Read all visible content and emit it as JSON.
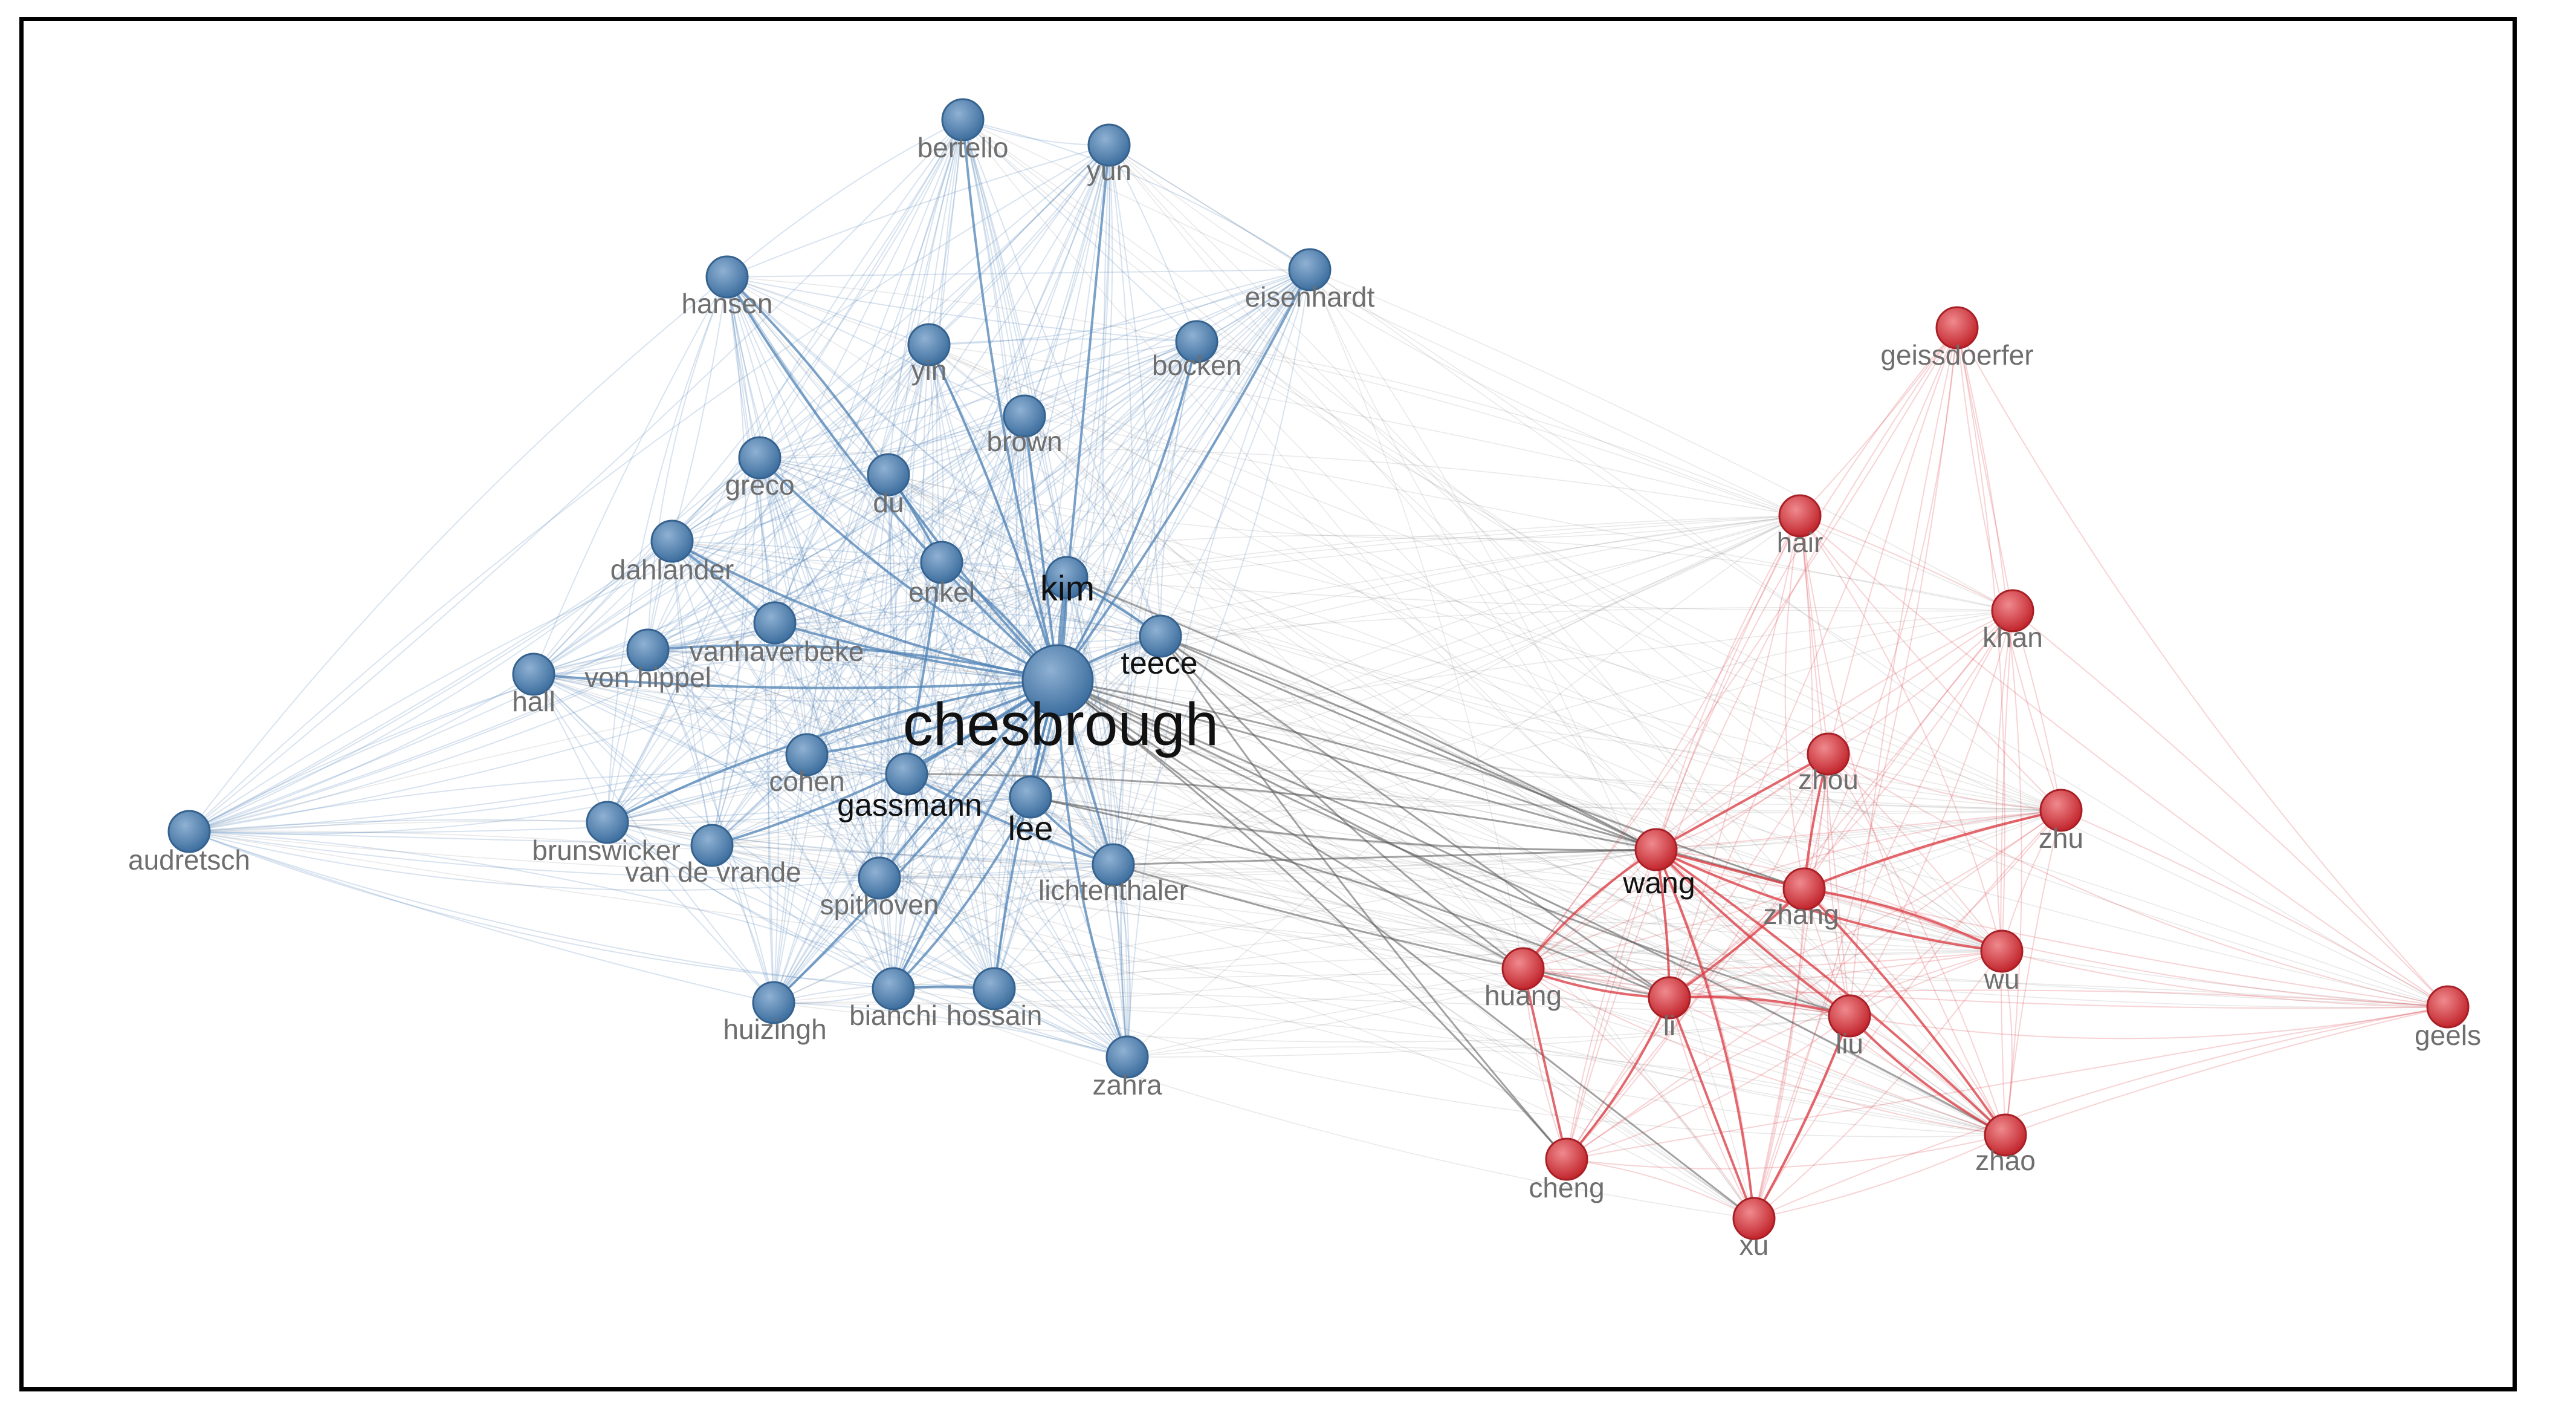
{
  "colors": {
    "cluster_blue": "#4f81b4",
    "cluster_red": "#d9363e",
    "link_gray": "#555555",
    "label_gray": "#6e6e6e",
    "label_strong": "#111111",
    "border": "#000000"
  },
  "nodes": [
    {
      "id": "chesbrough",
      "label": "chesbrough",
      "cluster": "blue",
      "weight": 10
    },
    {
      "id": "kim",
      "label": "kim",
      "cluster": "blue",
      "weight": 3
    },
    {
      "id": "teece",
      "label": "teece",
      "cluster": "blue",
      "weight": 3
    },
    {
      "id": "gassmann",
      "label": "gassmann",
      "cluster": "blue",
      "weight": 3
    },
    {
      "id": "lee",
      "label": "lee",
      "cluster": "blue",
      "weight": 3
    },
    {
      "id": "enkel",
      "label": "enkel",
      "cluster": "blue",
      "weight": 2
    },
    {
      "id": "cohen",
      "label": "cohen",
      "cluster": "blue",
      "weight": 2
    },
    {
      "id": "vanhaverbeke",
      "label": "vanhaverbeke",
      "cluster": "blue",
      "weight": 2
    },
    {
      "id": "lichtenthaler",
      "label": "lichtenthaler",
      "cluster": "blue",
      "weight": 2
    },
    {
      "id": "spithoven",
      "label": "spithoven",
      "cluster": "blue",
      "weight": 2
    },
    {
      "id": "von-hippel",
      "label": "von hippel",
      "cluster": "blue",
      "weight": 2
    },
    {
      "id": "dahlander",
      "label": "dahlander",
      "cluster": "blue",
      "weight": 2
    },
    {
      "id": "du",
      "label": "du",
      "cluster": "blue",
      "weight": 2
    },
    {
      "id": "greco",
      "label": "greco",
      "cluster": "blue",
      "weight": 2
    },
    {
      "id": "brown",
      "label": "brown",
      "cluster": "blue",
      "weight": 2
    },
    {
      "id": "yin",
      "label": "yin",
      "cluster": "blue",
      "weight": 2
    },
    {
      "id": "bocken",
      "label": "bocken",
      "cluster": "blue",
      "weight": 2
    },
    {
      "id": "hansen",
      "label": "hansen",
      "cluster": "blue",
      "weight": 2
    },
    {
      "id": "bertello",
      "label": "bertello",
      "cluster": "blue",
      "weight": 2
    },
    {
      "id": "yun",
      "label": "yun",
      "cluster": "blue",
      "weight": 2
    },
    {
      "id": "eisenhardt",
      "label": "eisenhardt",
      "cluster": "blue",
      "weight": 2
    },
    {
      "id": "hall",
      "label": "hall",
      "cluster": "blue",
      "weight": 2
    },
    {
      "id": "audretsch",
      "label": "audretsch",
      "cluster": "blue",
      "weight": 2
    },
    {
      "id": "brunswicker",
      "label": "brunswicker",
      "cluster": "blue",
      "weight": 2
    },
    {
      "id": "van-de-vrande",
      "label": "van de vrande",
      "cluster": "blue",
      "weight": 2
    },
    {
      "id": "huizingh",
      "label": "huizingh",
      "cluster": "blue",
      "weight": 2
    },
    {
      "id": "bianchi",
      "label": "bianchi",
      "cluster": "blue",
      "weight": 2
    },
    {
      "id": "hossain",
      "label": "hossain",
      "cluster": "blue",
      "weight": 2
    },
    {
      "id": "zahra",
      "label": "zahra",
      "cluster": "blue",
      "weight": 2
    },
    {
      "id": "geissdoerfer",
      "label": "geissdoerfer",
      "cluster": "red",
      "weight": 2
    },
    {
      "id": "hair",
      "label": "hair",
      "cluster": "red",
      "weight": 2
    },
    {
      "id": "khan",
      "label": "khan",
      "cluster": "red",
      "weight": 2
    },
    {
      "id": "zhou",
      "label": "zhou",
      "cluster": "red",
      "weight": 2
    },
    {
      "id": "zhu",
      "label": "zhu",
      "cluster": "red",
      "weight": 2
    },
    {
      "id": "wang",
      "label": "wang",
      "cluster": "red",
      "weight": 3
    },
    {
      "id": "zhang",
      "label": "zhang",
      "cluster": "red",
      "weight": 2
    },
    {
      "id": "wu",
      "label": "wu",
      "cluster": "red",
      "weight": 2
    },
    {
      "id": "huang",
      "label": "huang",
      "cluster": "red",
      "weight": 2
    },
    {
      "id": "li",
      "label": "li",
      "cluster": "red",
      "weight": 2
    },
    {
      "id": "liu",
      "label": "liu",
      "cluster": "red",
      "weight": 2
    },
    {
      "id": "geels",
      "label": "geels",
      "cluster": "red",
      "weight": 2
    },
    {
      "id": "cheng",
      "label": "cheng",
      "cluster": "red",
      "weight": 2
    },
    {
      "id": "zhao",
      "label": "zhao",
      "cluster": "red",
      "weight": 2
    },
    {
      "id": "xu",
      "label": "xu",
      "cluster": "red",
      "weight": 2
    }
  ],
  "strong_links": [
    [
      "chesbrough",
      "teece"
    ],
    [
      "chesbrough",
      "kim"
    ],
    [
      "chesbrough",
      "gassmann"
    ],
    [
      "chesbrough",
      "lee"
    ],
    [
      "chesbrough",
      "enkel"
    ],
    [
      "chesbrough",
      "cohen"
    ],
    [
      "chesbrough",
      "vanhaverbeke"
    ],
    [
      "chesbrough",
      "lichtenthaler"
    ],
    [
      "chesbrough",
      "spithoven"
    ],
    [
      "chesbrough",
      "von-hippel"
    ],
    [
      "chesbrough",
      "dahlander"
    ],
    [
      "chesbrough",
      "du"
    ],
    [
      "chesbrough",
      "brown"
    ],
    [
      "chesbrough",
      "yin"
    ],
    [
      "chesbrough",
      "bocken"
    ],
    [
      "chesbrough",
      "hansen"
    ],
    [
      "chesbrough",
      "bertello"
    ],
    [
      "chesbrough",
      "yun"
    ],
    [
      "chesbrough",
      "eisenhardt"
    ],
    [
      "chesbrough",
      "brunswicker"
    ],
    [
      "chesbrough",
      "van-de-vrande"
    ],
    [
      "chesbrough",
      "huizingh"
    ],
    [
      "chesbrough",
      "bianchi"
    ],
    [
      "chesbrough",
      "hossain"
    ],
    [
      "chesbrough",
      "zahra"
    ],
    [
      "chesbrough",
      "greco"
    ],
    [
      "chesbrough",
      "hall"
    ],
    [
      "gassmann",
      "enkel"
    ],
    [
      "gassmann",
      "lichtenthaler"
    ],
    [
      "lee",
      "kim"
    ],
    [
      "lee",
      "bianchi"
    ],
    [
      "bianchi",
      "hossain"
    ],
    [
      "vanhaverbeke",
      "dahlander"
    ],
    [
      "teece",
      "kim"
    ],
    [
      "lee",
      "lichtenthaler"
    ],
    [
      "hansen",
      "enkel"
    ],
    [
      "wang",
      "li"
    ],
    [
      "wang",
      "zhang"
    ],
    [
      "wang",
      "liu"
    ],
    [
      "wang",
      "huang"
    ],
    [
      "wang",
      "xu"
    ],
    [
      "wang",
      "zhao"
    ],
    [
      "li",
      "xu"
    ],
    [
      "li",
      "zhang"
    ],
    [
      "liu",
      "zhao"
    ],
    [
      "li",
      "huang"
    ],
    [
      "zhang",
      "zhou"
    ],
    [
      "wang",
      "zhou"
    ],
    [
      "zhu",
      "zhang"
    ],
    [
      "wu",
      "zhang"
    ],
    [
      "li",
      "cheng"
    ],
    [
      "liu",
      "xu"
    ],
    [
      "huang",
      "cheng"
    ],
    [
      "zhao",
      "zhang"
    ],
    [
      "wang",
      "wu"
    ],
    [
      "li",
      "liu"
    ]
  ],
  "bridge_links": [
    [
      "chesbrough",
      "wang"
    ],
    [
      "chesbrough",
      "li"
    ],
    [
      "chesbrough",
      "zhang"
    ],
    [
      "chesbrough",
      "huang"
    ],
    [
      "chesbrough",
      "liu"
    ],
    [
      "chesbrough",
      "cheng"
    ],
    [
      "teece",
      "wang"
    ],
    [
      "teece",
      "li"
    ],
    [
      "teece",
      "zhang"
    ],
    [
      "lee",
      "wang"
    ],
    [
      "lee",
      "li"
    ],
    [
      "kim",
      "wang"
    ],
    [
      "lichtenthaler",
      "wang"
    ],
    [
      "lichtenthaler",
      "li"
    ],
    [
      "teece",
      "huang"
    ],
    [
      "gassmann",
      "wang"
    ],
    [
      "chesbrough",
      "zhao"
    ],
    [
      "chesbrough",
      "xu"
    ],
    [
      "teece",
      "cheng"
    ]
  ]
}
